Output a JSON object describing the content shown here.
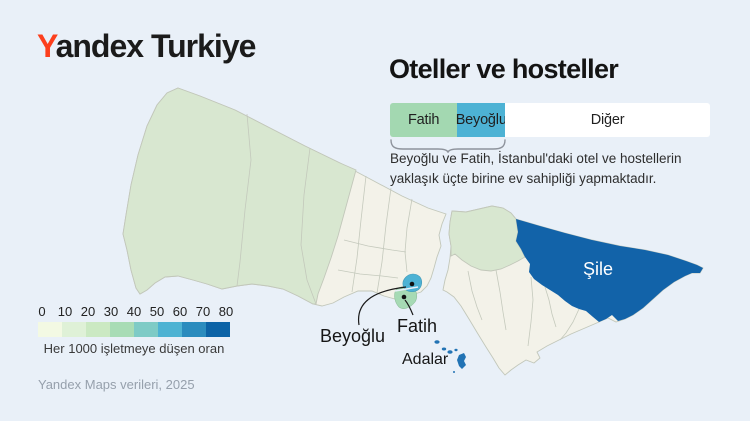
{
  "brand": {
    "logo_first_letter": "Y",
    "logo_rest": "andex Turkiye",
    "logo_accent_color": "#fc3f1d"
  },
  "panel": {
    "title": "Oteller ve hosteller",
    "bar": {
      "segments": [
        {
          "label": "Fatih",
          "color": "#a3d8b1",
          "width_pct": 21
        },
        {
          "label": "Beyoğlu",
          "color": "#4db2d4",
          "width_pct": 15
        },
        {
          "label": "Diğer",
          "color": "#ffffff",
          "width_pct": 64
        }
      ]
    },
    "note_line1": "Beyoğlu ve Fatih, İstanbul'daki otel ve hostellerin",
    "note_line2": "yaklaşık üçte birine ev sahipliği yapmaktadır."
  },
  "map": {
    "labels": {
      "sile": "Şile",
      "beyoglu": "Beyoğlu",
      "fatih": "Fatih",
      "adalar": "Adalar"
    },
    "colors": {
      "sea": "#e9f0f8",
      "district_low": "#f3f2e9",
      "district_green": "#d8e7d0",
      "sile_fill": "#1263a9",
      "beyoglu_fill": "#4db2d4",
      "fatih_fill": "#a6dab4",
      "adalar_fill": "#2273b4",
      "border": "#c2c7ba"
    }
  },
  "legend": {
    "ticks": [
      "0",
      "10",
      "20",
      "30",
      "40",
      "50",
      "60",
      "70",
      "80"
    ],
    "colors": [
      "#f3f9e3",
      "#dff1d7",
      "#cbe9c2",
      "#a8dcb5",
      "#7ecbc6",
      "#4eb3d3",
      "#2b8cbe",
      "#0c63a6"
    ],
    "caption": "Her 1000 işletmeye düşen oran"
  },
  "footer": {
    "source": "Yandex Maps verileri, 2025"
  },
  "chart_data": {
    "type": "bar",
    "title": "Oteller ve hosteller",
    "categories": [
      "Fatih",
      "Beyoğlu",
      "Diğer"
    ],
    "values": [
      21,
      15,
      64
    ],
    "value_unit": "% share of bar width (estimated)",
    "legend_scale": {
      "label": "Her 1000 işletmeye düşen oran",
      "ticks": [
        0,
        10,
        20,
        30,
        40,
        50,
        60,
        70,
        80
      ]
    },
    "map_highlights": [
      {
        "name": "Şile",
        "tone": "dark-blue (high)"
      },
      {
        "name": "Adalar",
        "tone": "dark-blue (high)"
      },
      {
        "name": "Beyoğlu",
        "tone": "teal (mid)"
      },
      {
        "name": "Fatih",
        "tone": "light-green (low-mid)"
      }
    ]
  }
}
